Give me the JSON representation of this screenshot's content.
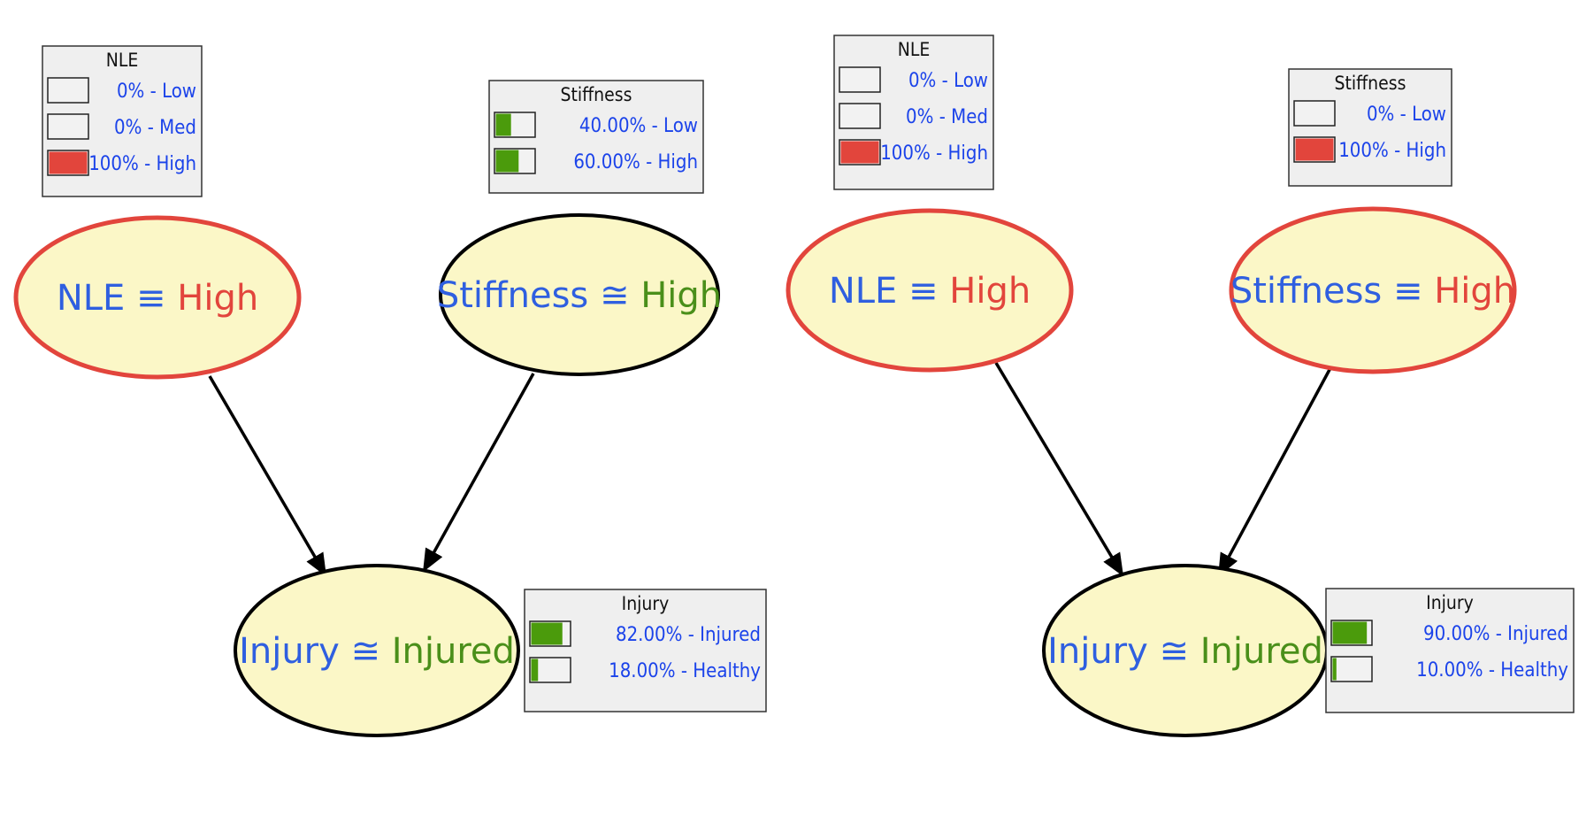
{
  "colors": {
    "label_blue": "#2f5fe0",
    "state_red": "#e2453c",
    "state_green": "#4a8f1a",
    "bar_green": "#4b9b0c",
    "bar_red": "#e2453c",
    "node_fill": "#fbf7c7",
    "box_fill": "#efefef",
    "row_text": "#1b43ea"
  },
  "icons": {
    "relation_set": "≡",
    "relation_approx": "≅"
  },
  "panels": [
    {
      "nodes": [
        {
          "id": "nle",
          "name": "NLE",
          "rel": "≡",
          "state": "High",
          "state_color": "red",
          "border": "red"
        },
        {
          "id": "stiffness",
          "name": "Stiffness",
          "rel": "≅",
          "state": "High",
          "state_color": "green",
          "border": "black"
        },
        {
          "id": "injury",
          "name": "Injury",
          "rel": "≅",
          "state": "Injured",
          "state_color": "green",
          "border": "black"
        }
      ],
      "tables": [
        {
          "node": "nle",
          "title": "NLE",
          "rows": [
            {
              "label": "0% - Low",
              "value": 0,
              "color": "green"
            },
            {
              "label": "0% - Med",
              "value": 0,
              "color": "green"
            },
            {
              "label": "100% - High",
              "value": 1.0,
              "color": "red"
            }
          ]
        },
        {
          "node": "stiffness",
          "title": "Stiffness",
          "rows": [
            {
              "label": "40.00% - Low",
              "value": 0.4,
              "color": "green"
            },
            {
              "label": "60.00% - High",
              "value": 0.6,
              "color": "green"
            }
          ]
        },
        {
          "node": "injury",
          "title": "Injury",
          "rows": [
            {
              "label": "82.00% - Injured",
              "value": 0.82,
              "color": "green"
            },
            {
              "label": "18.00% - Healthy",
              "value": 0.18,
              "color": "green"
            }
          ]
        }
      ]
    },
    {
      "nodes": [
        {
          "id": "nle",
          "name": "NLE",
          "rel": "≡",
          "state": "High",
          "state_color": "red",
          "border": "red"
        },
        {
          "id": "stiffness",
          "name": "Stiffness",
          "rel": "≡",
          "state": "High",
          "state_color": "red",
          "border": "red"
        },
        {
          "id": "injury",
          "name": "Injury",
          "rel": "≅",
          "state": "Injured",
          "state_color": "green",
          "border": "black"
        }
      ],
      "tables": [
        {
          "node": "nle",
          "title": "NLE",
          "rows": [
            {
              "label": "0% - Low",
              "value": 0,
              "color": "green"
            },
            {
              "label": "0% - Med",
              "value": 0,
              "color": "green"
            },
            {
              "label": "100% - High",
              "value": 1.0,
              "color": "red"
            }
          ]
        },
        {
          "node": "stiffness",
          "title": "Stiffness",
          "rows": [
            {
              "label": "0% - Low",
              "value": 0,
              "color": "green"
            },
            {
              "label": "100% - High",
              "value": 1.0,
              "color": "red"
            }
          ]
        },
        {
          "node": "injury",
          "title": "Injury",
          "rows": [
            {
              "label": "90.00% - Injured",
              "value": 0.9,
              "color": "green"
            },
            {
              "label": "10.00% - Healthy",
              "value": 0.1,
              "color": "green"
            }
          ]
        }
      ]
    }
  ],
  "edges": [
    {
      "from": "nle",
      "to": "injury"
    },
    {
      "from": "stiffness",
      "to": "injury"
    }
  ]
}
